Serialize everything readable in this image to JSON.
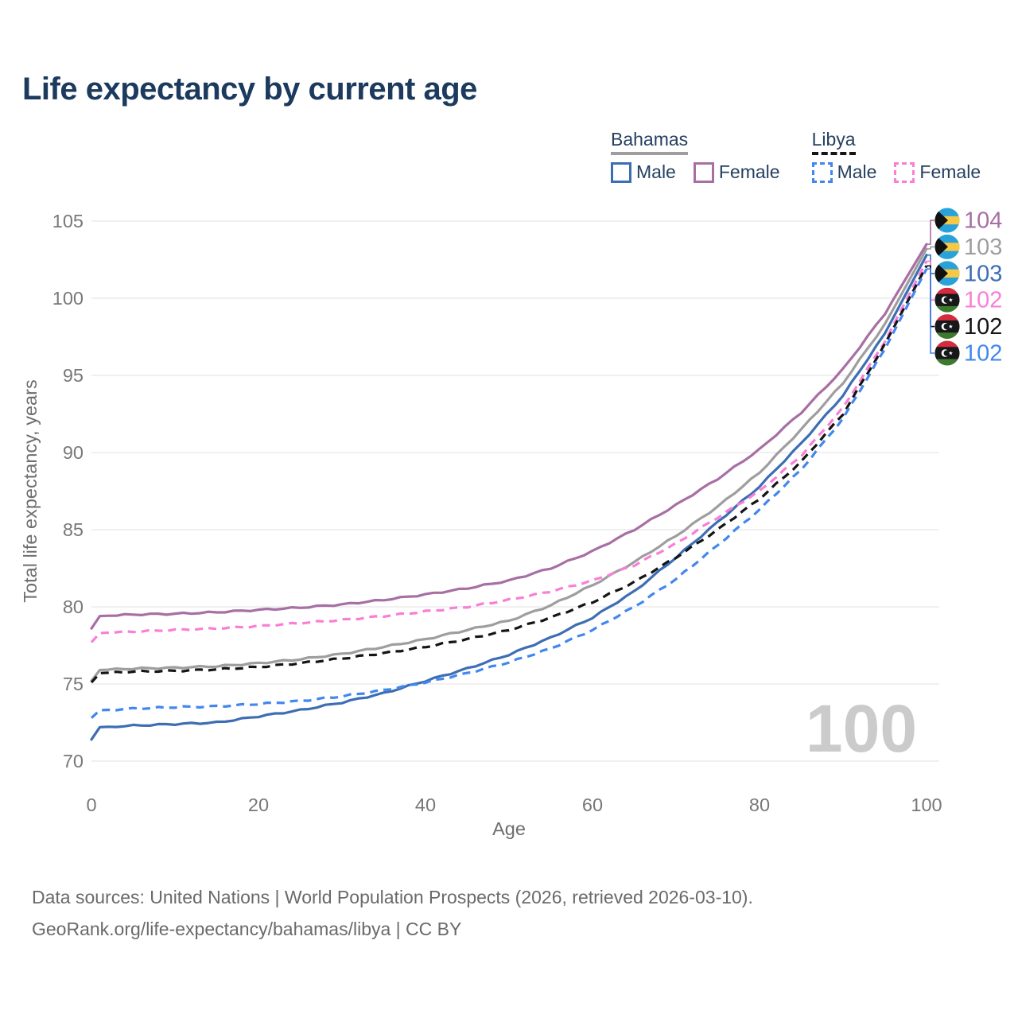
{
  "page": {
    "title": "Life expectancy by current age",
    "watermark": "100",
    "footer_line1": "Data sources: United Nations | World Population Prospects (2026, retrieved 2026-03-10).",
    "footer_line2": "GeoRank.org/life-expectancy/bahamas/libya | CC BY"
  },
  "legend": {
    "groups": [
      {
        "country": "Bahamas",
        "line_style": "solid",
        "underline_color": "#9e9e9e",
        "items": [
          {
            "label": "Male",
            "color": "#3d6eb4"
          },
          {
            "label": "Female",
            "color": "#a76fa4"
          }
        ]
      },
      {
        "country": "Libya",
        "line_style": "dashed",
        "underline_color": "#141414",
        "items": [
          {
            "label": "Male",
            "color": "#4287ee"
          },
          {
            "label": "Female",
            "color": "#f97fd6"
          }
        ]
      }
    ]
  },
  "chart_data": {
    "type": "line",
    "title": "Life expectancy by current age",
    "xlabel": "Age",
    "ylabel": "Total life expectancy, years",
    "xlim": [
      0,
      100
    ],
    "ylim": [
      70,
      105
    ],
    "x_ticks": [
      0,
      20,
      40,
      60,
      80,
      100
    ],
    "y_ticks": [
      70,
      75,
      80,
      85,
      90,
      95,
      100,
      105
    ],
    "grid": "horizontal",
    "legend_position": "top-right",
    "ages": [
      0,
      1,
      5,
      10,
      15,
      20,
      25,
      30,
      35,
      40,
      45,
      50,
      55,
      60,
      65,
      70,
      75,
      80,
      85,
      90,
      95,
      100
    ],
    "series": [
      {
        "name": "Bahamas Female",
        "country": "Bahamas",
        "sex": "Female",
        "color": "#a76fa4",
        "dash": "solid",
        "flag": "bahamas",
        "end_label": "104",
        "values": [
          78.6,
          79.4,
          79.5,
          79.55,
          79.65,
          79.8,
          79.95,
          80.15,
          80.45,
          80.8,
          81.2,
          81.7,
          82.5,
          83.6,
          85.0,
          86.6,
          88.3,
          90.2,
          92.6,
          95.4,
          99.0,
          103.5
        ]
      },
      {
        "name": "Bahamas Both sexes",
        "country": "Bahamas",
        "sex": "Both",
        "color": "#9e9e9e",
        "dash": "solid",
        "flag": "bahamas",
        "end_label": "103",
        "values": [
          75.2,
          75.9,
          76.0,
          76.05,
          76.15,
          76.35,
          76.6,
          76.95,
          77.4,
          77.9,
          78.5,
          79.1,
          80.1,
          81.4,
          82.9,
          84.6,
          86.5,
          88.7,
          91.5,
          94.5,
          98.3,
          103.2
        ]
      },
      {
        "name": "Bahamas Male",
        "country": "Bahamas",
        "sex": "Male",
        "color": "#3d6eb4",
        "dash": "solid",
        "flag": "bahamas",
        "end_label": "103",
        "values": [
          71.4,
          72.2,
          72.3,
          72.4,
          72.5,
          72.9,
          73.3,
          73.8,
          74.4,
          75.2,
          76.0,
          76.9,
          78.0,
          79.3,
          81.0,
          83.2,
          85.5,
          87.8,
          90.6,
          93.7,
          97.7,
          102.8
        ]
      },
      {
        "name": "Libya Female",
        "country": "Libya",
        "sex": "Female",
        "color": "#f97fd6",
        "dash": "dashed",
        "flag": "libya",
        "end_label": "102",
        "values": [
          77.7,
          78.3,
          78.4,
          78.5,
          78.6,
          78.75,
          78.95,
          79.15,
          79.4,
          79.7,
          80.0,
          80.45,
          81.0,
          81.7,
          82.7,
          84.1,
          85.8,
          87.5,
          89.8,
          92.9,
          97.2,
          102.4
        ]
      },
      {
        "name": "Libya Both sexes",
        "country": "Libya",
        "sex": "Both",
        "color": "#141414",
        "dash": "dashed",
        "flag": "libya",
        "end_label": "102",
        "values": [
          75.1,
          75.7,
          75.8,
          75.85,
          75.95,
          76.1,
          76.35,
          76.65,
          77.0,
          77.4,
          77.9,
          78.5,
          79.3,
          80.3,
          81.6,
          83.2,
          85.0,
          87.0,
          89.4,
          92.5,
          97.0,
          102.1
        ]
      },
      {
        "name": "Libya Male",
        "country": "Libya",
        "sex": "Male",
        "color": "#4287ee",
        "dash": "dashed",
        "flag": "libya",
        "end_label": "102",
        "values": [
          72.8,
          73.3,
          73.4,
          73.5,
          73.55,
          73.7,
          73.9,
          74.2,
          74.6,
          75.1,
          75.7,
          76.4,
          77.3,
          78.5,
          80.0,
          81.8,
          84.0,
          86.3,
          88.9,
          92.2,
          96.7,
          101.9
        ]
      }
    ]
  }
}
